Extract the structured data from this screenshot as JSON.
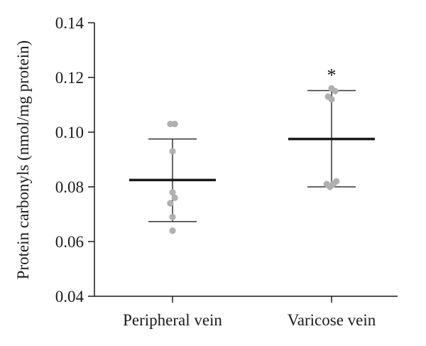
{
  "chart_data": {
    "type": "scatter",
    "title": "",
    "xlabel": "",
    "ylabel": "Protein carbonyls (nmol/mg protein)",
    "ylim": [
      0.04,
      0.14
    ],
    "yticks": [
      "0.04",
      "0.06",
      "0.08",
      "0.10",
      "0.12",
      "0.14"
    ],
    "ytick_values": [
      0.04,
      0.06,
      0.08,
      0.1,
      0.12,
      0.14
    ],
    "categories": [
      "Peripheral vein",
      "Varicose vein"
    ],
    "grid": false,
    "series": [
      {
        "category": "Peripheral vein",
        "points": [
          {
            "offset": -0.35,
            "value": 0.103
          },
          {
            "offset": 0.35,
            "value": 0.103
          },
          {
            "offset": 0.0,
            "value": 0.093
          },
          {
            "offset": 0.0,
            "value": 0.078
          },
          {
            "offset": 0.35,
            "value": 0.076
          },
          {
            "offset": -0.35,
            "value": 0.074
          },
          {
            "offset": 0.0,
            "value": 0.069
          },
          {
            "offset": 0.0,
            "value": 0.064
          }
        ],
        "mean": 0.0825,
        "error_upper": 0.0975,
        "error_lower": 0.0673,
        "annotation": ""
      },
      {
        "category": "Varicose vein",
        "points": [
          {
            "offset": 0.0,
            "value": 0.116
          },
          {
            "offset": 0.55,
            "value": 0.115
          },
          {
            "offset": -0.55,
            "value": 0.113
          },
          {
            "offset": 0.0,
            "value": 0.112
          },
          {
            "offset": -0.75,
            "value": 0.081
          },
          {
            "offset": -0.25,
            "value": 0.08
          },
          {
            "offset": 0.25,
            "value": 0.081
          },
          {
            "offset": 0.75,
            "value": 0.082
          }
        ],
        "mean": 0.0975,
        "error_upper": 0.1152,
        "error_lower": 0.08,
        "annotation": "*"
      }
    ],
    "colors": {
      "points": "#b0b0b0",
      "mean_line": "#1a1a1a",
      "error_bars": "#333333",
      "axis": "#1a1a1a"
    }
  }
}
